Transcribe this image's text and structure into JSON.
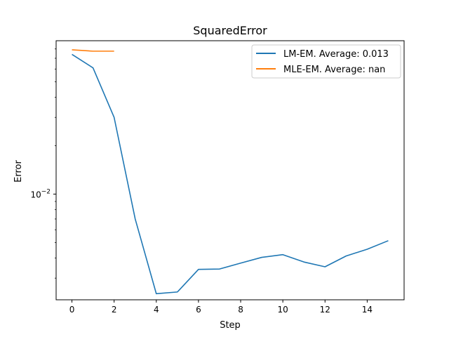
{
  "chart_data": {
    "type": "line",
    "title": "SquaredError",
    "xlabel": "Step",
    "ylabel": "Error",
    "xlim": [
      -0.75,
      15.75
    ],
    "ylim": [
      0.0022,
      0.09
    ],
    "yscale": "log",
    "grid": false,
    "legend_position": "top-right",
    "x_ticks": [
      0,
      2,
      4,
      6,
      8,
      10,
      12,
      14
    ],
    "x_tick_labels": [
      "0",
      "2",
      "4",
      "6",
      "8",
      "10",
      "12",
      "14"
    ],
    "y_major_tick": 0.01,
    "y_major_tick_label_base": "10",
    "y_major_tick_label_exp": "−2",
    "y_minor_ticks": [
      0.003,
      0.004,
      0.005,
      0.006,
      0.007,
      0.008,
      0.009,
      0.02,
      0.03,
      0.04,
      0.05,
      0.06,
      0.07,
      0.08
    ],
    "series": [
      {
        "name": "LM-EM. Average: 0.013",
        "color": "#1f77b4",
        "x": [
          0,
          1,
          2,
          3,
          4,
          5,
          6,
          7,
          8,
          9,
          10,
          11,
          12,
          13,
          14,
          15
        ],
        "y": [
          0.074,
          0.061,
          0.03,
          0.007,
          0.0024,
          0.00246,
          0.0034,
          0.00342,
          0.00372,
          0.00404,
          0.0042,
          0.00378,
          0.00353,
          0.00412,
          0.00454,
          0.00513
        ]
      },
      {
        "name": "MLE-EM. Average: nan",
        "color": "#ff7f0e",
        "x": [
          0,
          1,
          2
        ],
        "y": [
          0.079,
          0.0775,
          0.0775
        ]
      }
    ]
  }
}
